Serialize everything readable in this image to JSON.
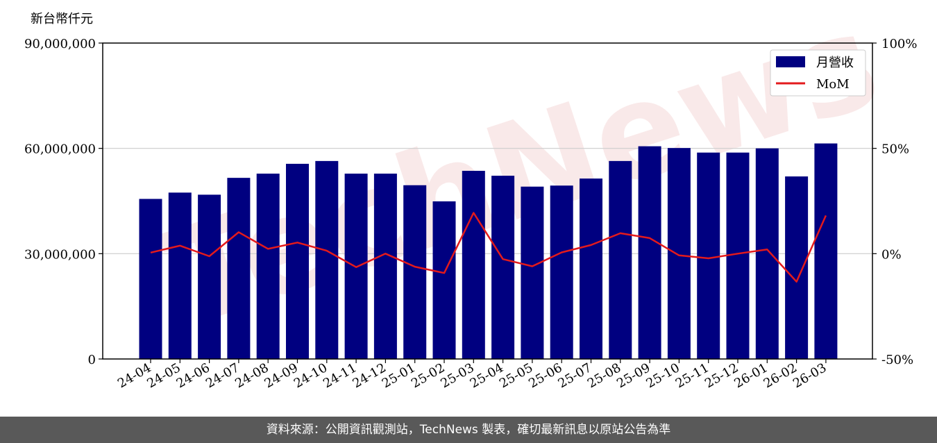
{
  "y_unit_label": "新台幣仟元",
  "watermark": "TechNews",
  "footer_text": "資料來源：公開資訊觀測站，TechNews 製表，確切最新訊息以原站公告為準",
  "colors": {
    "bar": "#000080",
    "line": "#e31a1c",
    "grid": "#cccccc",
    "footer_bg": "#595959"
  },
  "chart_data": {
    "type": "bar",
    "categories": [
      "24-04",
      "24-05",
      "24-06",
      "24-07",
      "24-08",
      "24-09",
      "24-10",
      "24-11",
      "24-12",
      "25-01",
      "25-02",
      "25-03",
      "25-04",
      "25-05",
      "25-06",
      "25-07",
      "25-08",
      "25-09",
      "25-10",
      "25-11",
      "25-12",
      "26-01",
      "26-02",
      "26-03"
    ],
    "series": [
      {
        "name": "月營收",
        "axis": "left",
        "type": "bar",
        "values": [
          45600000,
          47400000,
          46800000,
          51600000,
          52800000,
          55600000,
          56400000,
          52800000,
          52800000,
          49500000,
          44900000,
          53600000,
          52200000,
          49100000,
          49400000,
          51400000,
          56400000,
          60600000,
          60100000,
          58800000,
          58800000,
          60000000,
          52000000,
          61400000
        ]
      },
      {
        "name": "MoM",
        "axis": "right",
        "type": "line",
        "values": [
          0.5,
          3.8,
          -1.2,
          10.2,
          2.3,
          5.3,
          1.4,
          -6.4,
          0.0,
          -6.2,
          -9.2,
          19.4,
          -2.6,
          -6.0,
          0.6,
          4.1,
          9.7,
          7.4,
          -0.8,
          -2.2,
          0.0,
          2.0,
          -13.3,
          18.1
        ]
      }
    ],
    "y_left": {
      "range": [
        0,
        90000000
      ],
      "ticks": [
        0,
        30000000,
        60000000,
        90000000
      ],
      "tick_labels": [
        "0",
        "30,000,000",
        "60,000,000",
        "90,000,000"
      ]
    },
    "y_right": {
      "range": [
        -50,
        100
      ],
      "ticks": [
        -50,
        0,
        50,
        100
      ],
      "tick_labels": [
        "-50%",
        "0%",
        "50%",
        "100%"
      ]
    },
    "grid": {
      "horizontal": true
    },
    "legend_position": "top-right"
  }
}
